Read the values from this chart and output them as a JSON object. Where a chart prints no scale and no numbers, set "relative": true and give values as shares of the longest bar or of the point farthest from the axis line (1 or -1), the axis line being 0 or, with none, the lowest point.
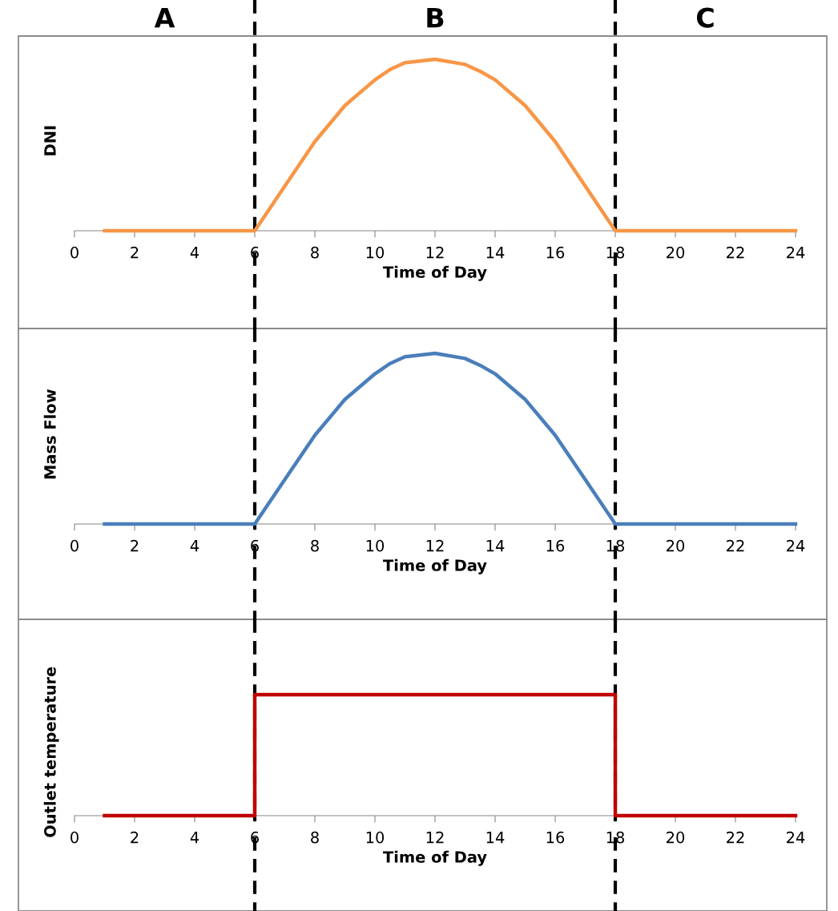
{
  "chart_data": [
    {
      "type": "line",
      "relative": true,
      "xlabel": "Time of Day",
      "ylabel": "DNI",
      "xlim": [
        0,
        24
      ],
      "xticks": [
        0,
        2,
        4,
        6,
        8,
        10,
        12,
        14,
        16,
        18,
        20,
        22,
        24
      ],
      "tick_labels": "x",
      "grid": false,
      "legend": false,
      "series": [
        {
          "color": "#f79646",
          "x": [
            1,
            2,
            3,
            4,
            5,
            6,
            7,
            8,
            9,
            10,
            10.5,
            11,
            12,
            13,
            13.5,
            14,
            15,
            16,
            17,
            18,
            19,
            20,
            21,
            22,
            23,
            24
          ],
          "values": [
            0,
            0,
            0,
            0,
            0,
            0,
            0.26,
            0.52,
            0.73,
            0.88,
            0.94,
            0.98,
            1,
            0.97,
            0.93,
            0.88,
            0.73,
            0.52,
            0.26,
            0,
            0,
            0,
            0,
            0,
            0,
            0
          ]
        }
      ],
      "ref_lines": [
        {
          "axis": "x",
          "value": 6,
          "color": "#000000",
          "line_style": "dashed"
        },
        {
          "axis": "x",
          "value": 18,
          "color": "#000000",
          "line_style": "dashed"
        }
      ],
      "annotations": [
        "A",
        "B",
        "C"
      ]
    },
    {
      "type": "line",
      "relative": true,
      "xlabel": "Time of Day",
      "ylabel": "Mass Flow",
      "xlim": [
        0,
        24
      ],
      "xticks": [
        0,
        2,
        4,
        6,
        8,
        10,
        12,
        14,
        16,
        18,
        20,
        22,
        24
      ],
      "tick_labels": "x",
      "grid": false,
      "legend": false,
      "series": [
        {
          "color": "#4a7ebb",
          "x": [
            1,
            2,
            3,
            4,
            5,
            6,
            7,
            8,
            9,
            10,
            10.5,
            11,
            12,
            13,
            13.5,
            14,
            15,
            16,
            17,
            18,
            19,
            20,
            21,
            22,
            23,
            24
          ],
          "values": [
            0,
            0,
            0,
            0,
            0,
            0,
            0.26,
            0.52,
            0.73,
            0.88,
            0.94,
            0.98,
            1,
            0.97,
            0.93,
            0.88,
            0.73,
            0.52,
            0.26,
            0,
            0,
            0,
            0,
            0,
            0,
            0
          ]
        }
      ],
      "ref_lines": [
        {
          "axis": "x",
          "value": 6,
          "color": "#000000",
          "line_style": "dashed"
        },
        {
          "axis": "x",
          "value": 18,
          "color": "#000000",
          "line_style": "dashed"
        }
      ]
    },
    {
      "type": "line",
      "relative": true,
      "xlabel": "Time of Day",
      "ylabel": "Outlet temperature",
      "xlim": [
        0,
        24
      ],
      "xticks": [
        0,
        2,
        4,
        6,
        8,
        10,
        12,
        14,
        16,
        18,
        20,
        22,
        24
      ],
      "tick_labels": "x",
      "grid": false,
      "legend": false,
      "series": [
        {
          "color": "#c00000",
          "x": [
            1,
            6,
            6,
            18,
            18,
            24
          ],
          "values": [
            0,
            0,
            1,
            1,
            0,
            0
          ]
        }
      ],
      "ref_lines": [
        {
          "axis": "x",
          "value": 6,
          "color": "#000000",
          "line_style": "dashed"
        },
        {
          "axis": "x",
          "value": 18,
          "color": "#000000",
          "line_style": "dashed"
        }
      ]
    }
  ]
}
